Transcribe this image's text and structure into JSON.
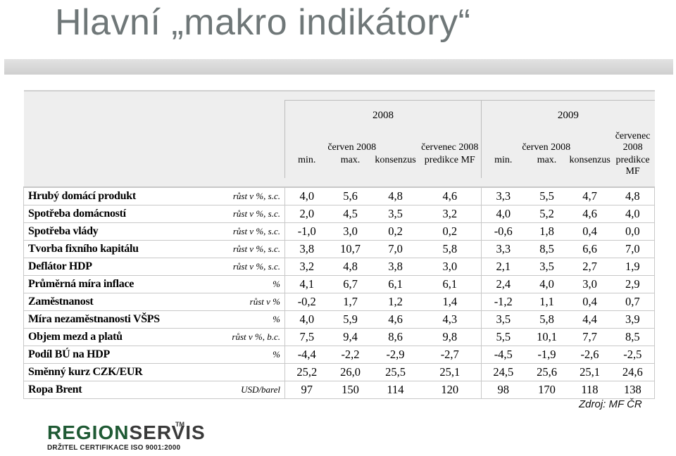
{
  "title": "Hlavní „makro indikátory“",
  "source": "Zdroj: MF ČR",
  "logo": {
    "part1": "REGION",
    "part2": "SERVIS",
    "tm": "TM",
    "subtitle": "DRŽITEL CERTIFIKACE ISO 9001:2000"
  },
  "header": {
    "year1": "2008",
    "year2": "2009",
    "group1_label": "červen 2008",
    "group2_label": "červenec 2008",
    "cols": [
      "min.",
      "max.",
      "konsenzus",
      "predikce MF"
    ]
  },
  "rows": [
    {
      "label": "Hrubý domácí produkt",
      "unit": "růst v %, s.c.",
      "values": [
        "4,0",
        "5,6",
        "4,8",
        "4,6",
        "3,3",
        "5,5",
        "4,7",
        "4,8"
      ]
    },
    {
      "label": "Spotřeba domácností",
      "unit": "růst v %, s.c.",
      "values": [
        "2,0",
        "4,5",
        "3,5",
        "3,2",
        "4,0",
        "5,2",
        "4,6",
        "4,0"
      ]
    },
    {
      "label": "Spotřeba vlády",
      "unit": "růst v %, s.c.",
      "values": [
        "-1,0",
        "3,0",
        "0,2",
        "0,2",
        "-0,6",
        "1,8",
        "0,4",
        "0,0"
      ]
    },
    {
      "label": "Tvorba fixního kapitálu",
      "unit": "růst v %, s.c.",
      "values": [
        "3,8",
        "10,7",
        "7,0",
        "5,8",
        "3,3",
        "8,5",
        "6,6",
        "7,0"
      ]
    },
    {
      "label": "Deflátor HDP",
      "unit": "růst v %, s.c.",
      "values": [
        "3,2",
        "4,8",
        "3,8",
        "3,0",
        "2,1",
        "3,5",
        "2,7",
        "1,9"
      ]
    },
    {
      "label": "Průměrná míra inflace",
      "unit": "%",
      "values": [
        "4,1",
        "6,7",
        "6,1",
        "6,1",
        "2,4",
        "4,0",
        "3,0",
        "2,9"
      ]
    },
    {
      "label": "Zaměstnanost",
      "unit": "růst v %",
      "values": [
        "-0,2",
        "1,7",
        "1,2",
        "1,4",
        "-1,2",
        "1,1",
        "0,4",
        "0,7"
      ]
    },
    {
      "label": "Míra nezaměstnanosti VŠPS",
      "unit": "%",
      "values": [
        "4,0",
        "5,9",
        "4,6",
        "4,3",
        "3,5",
        "5,8",
        "4,4",
        "3,9"
      ]
    },
    {
      "label": "Objem mezd a platů",
      "unit": "růst v %, b.c.",
      "values": [
        "7,5",
        "9,4",
        "8,6",
        "9,8",
        "5,5",
        "10,1",
        "7,7",
        "8,5"
      ]
    },
    {
      "label": "Podíl BÚ na HDP",
      "unit": "%",
      "values": [
        "-4,4",
        "-2,2",
        "-2,9",
        "-2,7",
        "-4,5",
        "-1,9",
        "-2,6",
        "-2,5"
      ]
    },
    {
      "label": "Směnný kurz CZK/EUR",
      "unit": "",
      "values": [
        "25,2",
        "26,0",
        "25,5",
        "25,1",
        "24,5",
        "25,6",
        "25,1",
        "24,6"
      ]
    },
    {
      "label": "Ropa Brent",
      "unit": "USD/barel",
      "values": [
        "97",
        "150",
        "114",
        "120",
        "98",
        "170",
        "118",
        "138"
      ]
    }
  ]
}
